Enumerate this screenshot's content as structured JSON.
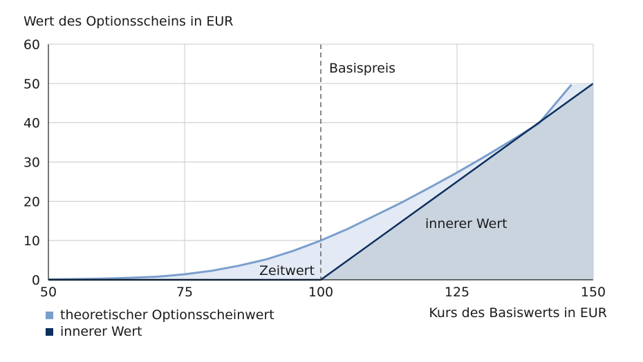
{
  "chart_data": {
    "type": "area",
    "ylabel": "Wert des Optionsscheins in EUR",
    "xlabel": "Kurs des Basiswerts in EUR",
    "xlim": [
      50,
      150
    ],
    "ylim": [
      0,
      60
    ],
    "x_ticks": [
      50,
      75,
      100,
      125,
      150
    ],
    "y_ticks": [
      0,
      10,
      20,
      30,
      40,
      50,
      60
    ],
    "grid": true,
    "legend_position": "bottom-left",
    "strike": {
      "x": 100,
      "label": "Basispreis"
    },
    "annotations": {
      "time_value": "Zeitwert",
      "intrinsic": "innerer Wert"
    },
    "series": [
      {
        "name": "theoretischer Optionsscheinwert",
        "color": "#7a9fcc",
        "x": [
          50,
          55,
          60,
          65,
          70,
          75,
          80,
          85,
          90,
          95,
          100,
          105,
          110,
          115,
          120,
          125,
          130,
          135,
          140,
          146
        ],
        "values": [
          0.1,
          0.2,
          0.3,
          0.5,
          0.8,
          1.4,
          2.3,
          3.6,
          5.2,
          7.4,
          10.0,
          13.0,
          16.4,
          19.8,
          23.5,
          27.3,
          31.3,
          35.5,
          39.8,
          49.7
        ]
      },
      {
        "name": "innerer Wert",
        "color": "#0d2f5e",
        "x": [
          50,
          100,
          150
        ],
        "values": [
          0,
          0,
          50
        ]
      }
    ]
  }
}
